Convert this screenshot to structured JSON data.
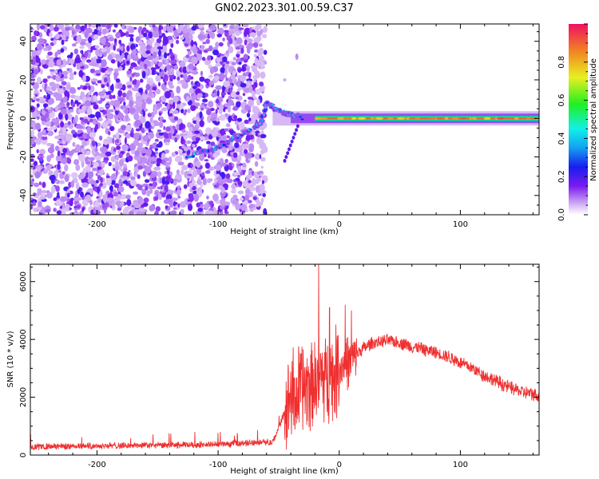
{
  "title": "GN02.2023.301.00.59.C37",
  "colors": {
    "snr_line": "#f03030",
    "spectrogram_scatter": "#7a22e8",
    "axes": "#000000"
  },
  "chart_data": [
    {
      "type": "heatmap",
      "xlabel": "Height of straight line (km)",
      "ylabel": "Frequency (Hz)",
      "xlim": [
        -255,
        165
      ],
      "ylim": [
        -50,
        49
      ],
      "xticks": [
        -200,
        -100,
        0,
        100
      ],
      "yticks": [
        -40,
        -20,
        0,
        20,
        40
      ],
      "colorbar": {
        "label": "Normalized spectral amplitude",
        "range": [
          0,
          1
        ],
        "ticks": [
          0.0,
          0.2,
          0.4,
          0.6,
          0.8
        ],
        "colormap": "rainbow"
      },
      "features": [
        {
          "name": "noise",
          "x_range": [
            -255,
            -65
          ],
          "y_range": [
            -50,
            49
          ],
          "amplitude": 0.1
        },
        {
          "name": "carrier",
          "x_range": [
            -20,
            165
          ],
          "y": 0,
          "amplitude": 0.9
        },
        {
          "name": "drift",
          "points": [
            [
              -125,
              -20
            ],
            [
              -100,
              -15
            ],
            [
              -80,
              -8
            ],
            [
              -65,
              -3
            ],
            [
              -60,
              8
            ],
            [
              -50,
              4
            ],
            [
              -40,
              2
            ],
            [
              -30,
              0
            ]
          ],
          "amplitude": 0.4
        }
      ]
    },
    {
      "type": "line",
      "xlabel": "Height of straight line (km)",
      "ylabel": "SNR (10 * v/v)",
      "xlim": [
        -255,
        165
      ],
      "ylim": [
        0,
        6600
      ],
      "xticks": [
        -200,
        -100,
        0,
        100
      ],
      "yticks": [
        0,
        2000,
        4000,
        6000
      ],
      "series": [
        {
          "x": [
            -255,
            -230,
            -200,
            -170,
            -140,
            -110,
            -90,
            -75,
            -65,
            -55,
            -45,
            -40,
            -35,
            -30,
            -25,
            -20,
            -15,
            -10,
            -5,
            0,
            10,
            20,
            30,
            40,
            50,
            60,
            70,
            80,
            90,
            100,
            110,
            120,
            130,
            140,
            150,
            160,
            165
          ],
          "y": [
            280,
            300,
            320,
            330,
            340,
            360,
            380,
            420,
            460,
            420,
            1500,
            2200,
            2000,
            2400,
            2500,
            2600,
            2700,
            2700,
            2800,
            3000,
            3300,
            3700,
            3900,
            3950,
            3900,
            3750,
            3650,
            3550,
            3400,
            3200,
            3000,
            2750,
            2550,
            2350,
            2200,
            2100,
            2050
          ]
        }
      ],
      "spikes": [
        [
          -17,
          6600
        ],
        [
          -8,
          5100
        ],
        [
          5,
          5200
        ],
        [
          10,
          5000
        ]
      ]
    }
  ]
}
